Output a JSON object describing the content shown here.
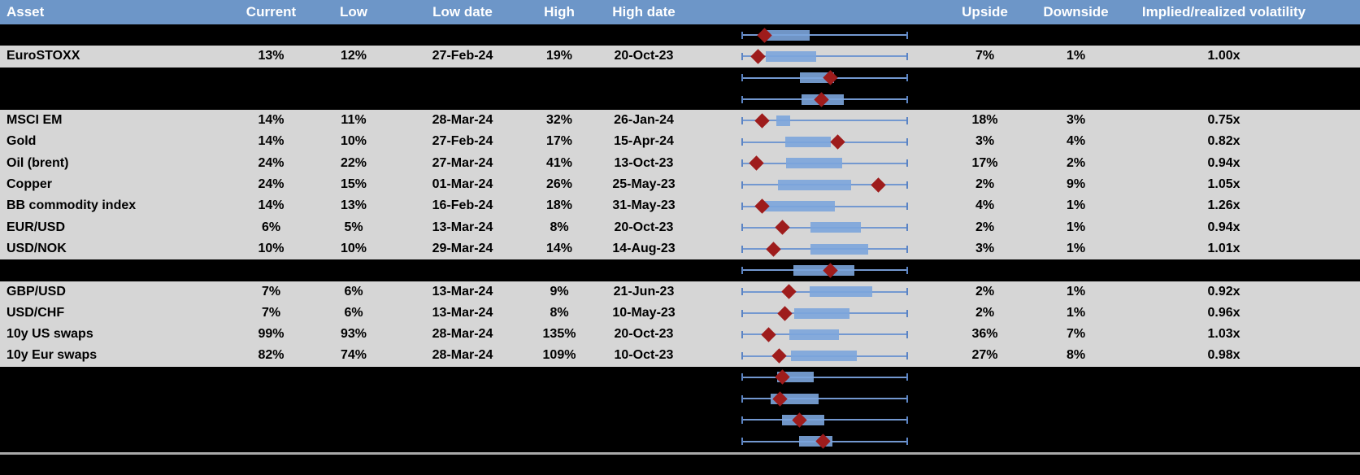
{
  "header": {
    "labels": [
      "Asset",
      "Current",
      "Low",
      "Low date",
      "High",
      "High date",
      "",
      "Upside",
      "Downside",
      "Implied/realized volatility"
    ]
  },
  "chart_data": {
    "type": "table",
    "columns": [
      "Asset",
      "Current",
      "Low",
      "Low date",
      "High",
      "High date",
      "1y range boxplot",
      "Upside",
      "Downside",
      "Implied/realized volatility"
    ],
    "boxplot_note": "box_start, box_end and marker are fractions of the whisker span; every whisker spans the full low-to-high range; marker is the dark red diamond (current level)",
    "rows": [
      {
        "type": "spacer",
        "asset": "",
        "current": "",
        "low": "",
        "low_date": "",
        "high": "",
        "high_date": "",
        "upside": "",
        "downside": "",
        "implied_realized": "",
        "boxplot": {
          "box_start": 0.141,
          "box_end": 0.41,
          "marker": 0.136
        }
      },
      {
        "type": "data",
        "asset": "EuroSTOXX",
        "current": "13%",
        "low": "12%",
        "low_date": "27-Feb-24",
        "high": "19%",
        "high_date": "20-Oct-23",
        "upside": "7%",
        "downside": "1%",
        "implied_realized": "1.00x",
        "boxplot": {
          "box_start": 0.141,
          "box_end": 0.448,
          "marker": 0.095
        }
      },
      {
        "type": "spacer",
        "asset": "",
        "current": "",
        "low": "",
        "low_date": "",
        "high": "",
        "high_date": "",
        "upside": "",
        "downside": "",
        "implied_realized": "",
        "boxplot": {
          "box_start": 0.348,
          "box_end": 0.557,
          "marker": 0.536
        }
      },
      {
        "type": "spacer",
        "asset": "",
        "current": "",
        "low": "",
        "low_date": "",
        "high": "",
        "high_date": "",
        "upside": "",
        "downside": "",
        "implied_realized": "",
        "boxplot": {
          "box_start": 0.361,
          "box_end": 0.614,
          "marker": 0.479
        }
      },
      {
        "type": "data",
        "asset": "MSCI EM",
        "current": "14%",
        "low": "11%",
        "low_date": "28-Mar-24",
        "high": "32%",
        "high_date": "26-Jan-24",
        "upside": "18%",
        "downside": "3%",
        "implied_realized": "0.75x",
        "boxplot": {
          "box_start": 0.206,
          "box_end": 0.291,
          "marker": 0.121
        }
      },
      {
        "type": "data",
        "asset": "Gold",
        "current": "14%",
        "low": "10%",
        "low_date": "27-Feb-24",
        "high": "17%",
        "high_date": "15-Apr-24",
        "upside": "3%",
        "downside": "4%",
        "implied_realized": "0.82x",
        "boxplot": {
          "box_start": 0.263,
          "box_end": 0.536,
          "marker": 0.577
        }
      },
      {
        "type": "data",
        "asset": "Oil (brent)",
        "current": "24%",
        "low": "22%",
        "low_date": "27-Mar-24",
        "high": "41%",
        "high_date": "13-Oct-23",
        "upside": "17%",
        "downside": "2%",
        "implied_realized": "0.94x",
        "boxplot": {
          "box_start": 0.268,
          "box_end": 0.606,
          "marker": 0.087
        }
      },
      {
        "type": "data",
        "asset": "Copper",
        "current": "24%",
        "low": "15%",
        "low_date": "01-Mar-24",
        "high": "26%",
        "high_date": "25-May-23",
        "upside": "2%",
        "downside": "9%",
        "implied_realized": "1.05x",
        "boxplot": {
          "box_start": 0.217,
          "box_end": 0.66,
          "marker": 0.827
        }
      },
      {
        "type": "data",
        "asset": "BB commodity index",
        "current": "14%",
        "low": "13%",
        "low_date": "16-Feb-24",
        "high": "18%",
        "high_date": "31-May-23",
        "upside": "4%",
        "downside": "1%",
        "implied_realized": "1.26x",
        "boxplot": {
          "box_start": 0.132,
          "box_end": 0.562,
          "marker": 0.119
        }
      },
      {
        "type": "data",
        "asset": "EUR/USD",
        "current": "6%",
        "low": "5%",
        "low_date": "13-Mar-24",
        "high": "8%",
        "high_date": "20-Oct-23",
        "upside": "2%",
        "downside": "1%",
        "implied_realized": "0.94x",
        "boxplot": {
          "box_start": 0.415,
          "box_end": 0.717,
          "marker": 0.242
        }
      },
      {
        "type": "data",
        "asset": "USD/NOK",
        "current": "10%",
        "low": "10%",
        "low_date": "29-Mar-24",
        "high": "14%",
        "high_date": "14-Aug-23",
        "upside": "3%",
        "downside": "1%",
        "implied_realized": "1.01x",
        "boxplot": {
          "box_start": 0.415,
          "box_end": 0.765,
          "marker": 0.19
        }
      },
      {
        "type": "spacer",
        "asset": "",
        "current": "",
        "low": "",
        "low_date": "",
        "high": "",
        "high_date": "",
        "upside": "",
        "downside": "",
        "implied_realized": "",
        "boxplot": {
          "box_start": 0.309,
          "box_end": 0.68,
          "marker": 0.533
        }
      },
      {
        "type": "data",
        "asset": "GBP/USD",
        "current": "7%",
        "low": "6%",
        "low_date": "13-Mar-24",
        "high": "9%",
        "high_date": "21-Jun-23",
        "upside": "2%",
        "downside": "1%",
        "implied_realized": "0.92x",
        "boxplot": {
          "box_start": 0.41,
          "box_end": 0.786,
          "marker": 0.284
        }
      },
      {
        "type": "data",
        "asset": "USD/CHF",
        "current": "7%",
        "low": "6%",
        "low_date": "13-Mar-24",
        "high": "8%",
        "high_date": "10-May-23",
        "upside": "2%",
        "downside": "1%",
        "implied_realized": "0.96x",
        "boxplot": {
          "box_start": 0.315,
          "box_end": 0.65,
          "marker": 0.258
        }
      },
      {
        "type": "data",
        "asset": "10y US swaps",
        "current": "99%",
        "low": "93%",
        "low_date": "28-Mar-24",
        "high": "135%",
        "high_date": "20-Oct-23",
        "upside": "36%",
        "downside": "7%",
        "implied_realized": "1.03x",
        "boxplot": {
          "box_start": 0.288,
          "box_end": 0.585,
          "marker": 0.16
        }
      },
      {
        "type": "data",
        "asset": "10y Eur swaps",
        "current": "82%",
        "low": "74%",
        "low_date": "28-Mar-24",
        "high": "109%",
        "high_date": "10-Oct-23",
        "upside": "27%",
        "downside": "8%",
        "implied_realized": "0.98x",
        "boxplot": {
          "box_start": 0.296,
          "box_end": 0.696,
          "marker": 0.222
        }
      },
      {
        "type": "spacer",
        "asset": "",
        "current": "",
        "low": "",
        "low_date": "",
        "high": "",
        "high_date": "",
        "upside": "",
        "downside": "",
        "implied_realized": "",
        "boxplot": {
          "box_start": 0.214,
          "box_end": 0.435,
          "marker": 0.242
        }
      },
      {
        "type": "spacer",
        "asset": "",
        "current": "",
        "low": "",
        "low_date": "",
        "high": "",
        "high_date": "",
        "upside": "",
        "downside": "",
        "implied_realized": "",
        "boxplot": {
          "box_start": 0.173,
          "box_end": 0.464,
          "marker": 0.227
        }
      },
      {
        "type": "spacer",
        "asset": "",
        "current": "",
        "low": "",
        "low_date": "",
        "high": "",
        "high_date": "",
        "upside": "",
        "downside": "",
        "implied_realized": "",
        "boxplot": {
          "box_start": 0.239,
          "box_end": 0.497,
          "marker": 0.345
        }
      },
      {
        "type": "spacer",
        "asset": "",
        "current": "",
        "low": "",
        "low_date": "",
        "high": "",
        "high_date": "",
        "upside": "",
        "downside": "",
        "implied_realized": "",
        "boxplot": {
          "box_start": 0.345,
          "box_end": 0.549,
          "marker": 0.492
        }
      }
    ]
  },
  "colors": {
    "header-blue": "#6d96c8",
    "row-gray": "#d6d6d6",
    "line-blue": "#7398d0",
    "cap-blue": "#5b84c4",
    "box-blue": "rgba(124,165,219,0.90)",
    "diamond-red": "#9e1c1c",
    "separator-gray": "#a9a9a9"
  }
}
